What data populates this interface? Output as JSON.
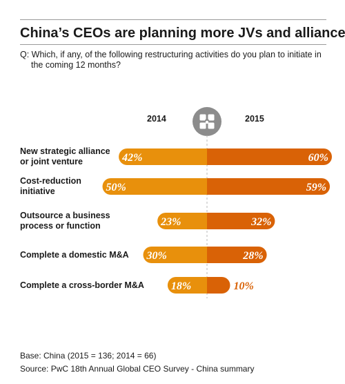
{
  "title": "China’s CEOs are planning more JVs and alliances",
  "question": "Q: Which, if any, of the following restructuring activities do you plan to initiate in the coming 12 months?",
  "legend": {
    "left": "2014",
    "right": "2015"
  },
  "footer": {
    "base": "Base: China (2015 = 136; 2014 = 66)",
    "source": "Source: PwC 18th Annual Global CEO Survey - China summary"
  },
  "colors": {
    "y2014": "#E8900C",
    "y2015": "#D96206",
    "center_line": "#b8b8b8",
    "logo": "#8c8c8c"
  },
  "icon": "puzzle-handshake-icon",
  "chart_data": {
    "type": "bar",
    "orientation": "diverging-horizontal",
    "categories": [
      "New strategic alliance or joint venture",
      "Cost-reduction initiative",
      "Outsource a business process or function",
      "Complete a domestic M&A",
      "Complete a cross-border M&A"
    ],
    "category_lines": [
      [
        "New strategic alliance",
        "or joint venture"
      ],
      [
        "Cost-reduction",
        "initiative"
      ],
      [
        "Outsource a business",
        "process or function"
      ],
      [
        "Complete a domestic M&A"
      ],
      [
        "Complete a cross-border M&A"
      ]
    ],
    "series": [
      {
        "name": "2014",
        "values": [
          42,
          50,
          23,
          30,
          18
        ],
        "labels": [
          "42%",
          "50%",
          "23%",
          "30%",
          "18%"
        ]
      },
      {
        "name": "2015",
        "values": [
          60,
          59,
          32,
          28,
          10
        ],
        "labels": [
          "60%",
          "59%",
          "32%",
          "28%",
          "10%"
        ]
      }
    ],
    "unit": "%",
    "grid": false
  }
}
